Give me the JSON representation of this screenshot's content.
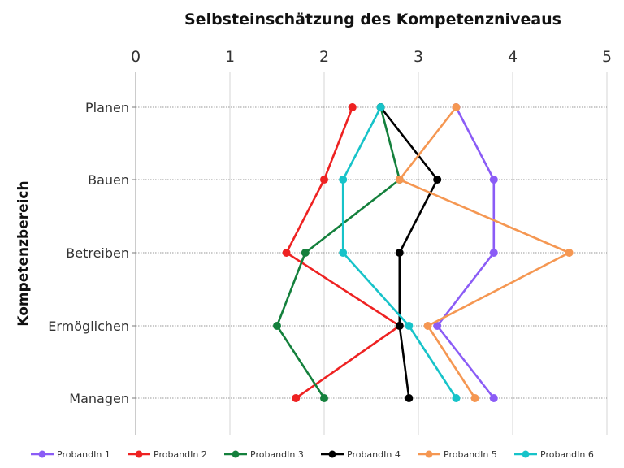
{
  "chart_data": {
    "type": "line",
    "orientation": "horizontal",
    "title": "Selbsteinschätzung des Kompetenzniveaus",
    "xlabel": "",
    "ylabel": "Kompetenzbereich",
    "xlim": [
      0,
      5
    ],
    "xticks": [
      "0",
      "1",
      "2",
      "3",
      "4",
      "5"
    ],
    "x_axis_position": "top",
    "grid": "vertical solid, horizontal dotted",
    "legend_position": "bottom",
    "categories": [
      "Planen",
      "Bauen",
      "Betreiben",
      "Ermöglichen",
      "Managen"
    ],
    "series": [
      {
        "name": "ProbandIn 1",
        "color": "#8b5cf6",
        "values": [
          3.4,
          3.8,
          3.8,
          3.2,
          3.8
        ]
      },
      {
        "name": "ProbandIn 2",
        "color": "#ee2222",
        "values": [
          2.3,
          2.0,
          1.6,
          2.8,
          1.7
        ]
      },
      {
        "name": "ProbandIn 3",
        "color": "#14803c",
        "values": [
          2.6,
          2.8,
          1.8,
          1.5,
          2.0
        ]
      },
      {
        "name": "ProbandIn 4",
        "color": "#000000",
        "values": [
          2.6,
          3.2,
          2.8,
          2.8,
          2.9
        ]
      },
      {
        "name": "ProbandIn 5",
        "color": "#f59752",
        "values": [
          3.4,
          2.8,
          4.6,
          3.1,
          3.6
        ]
      },
      {
        "name": "ProbandIn 6",
        "color": "#17c3c9",
        "values": [
          2.6,
          2.2,
          2.2,
          2.9,
          3.4
        ]
      }
    ]
  }
}
